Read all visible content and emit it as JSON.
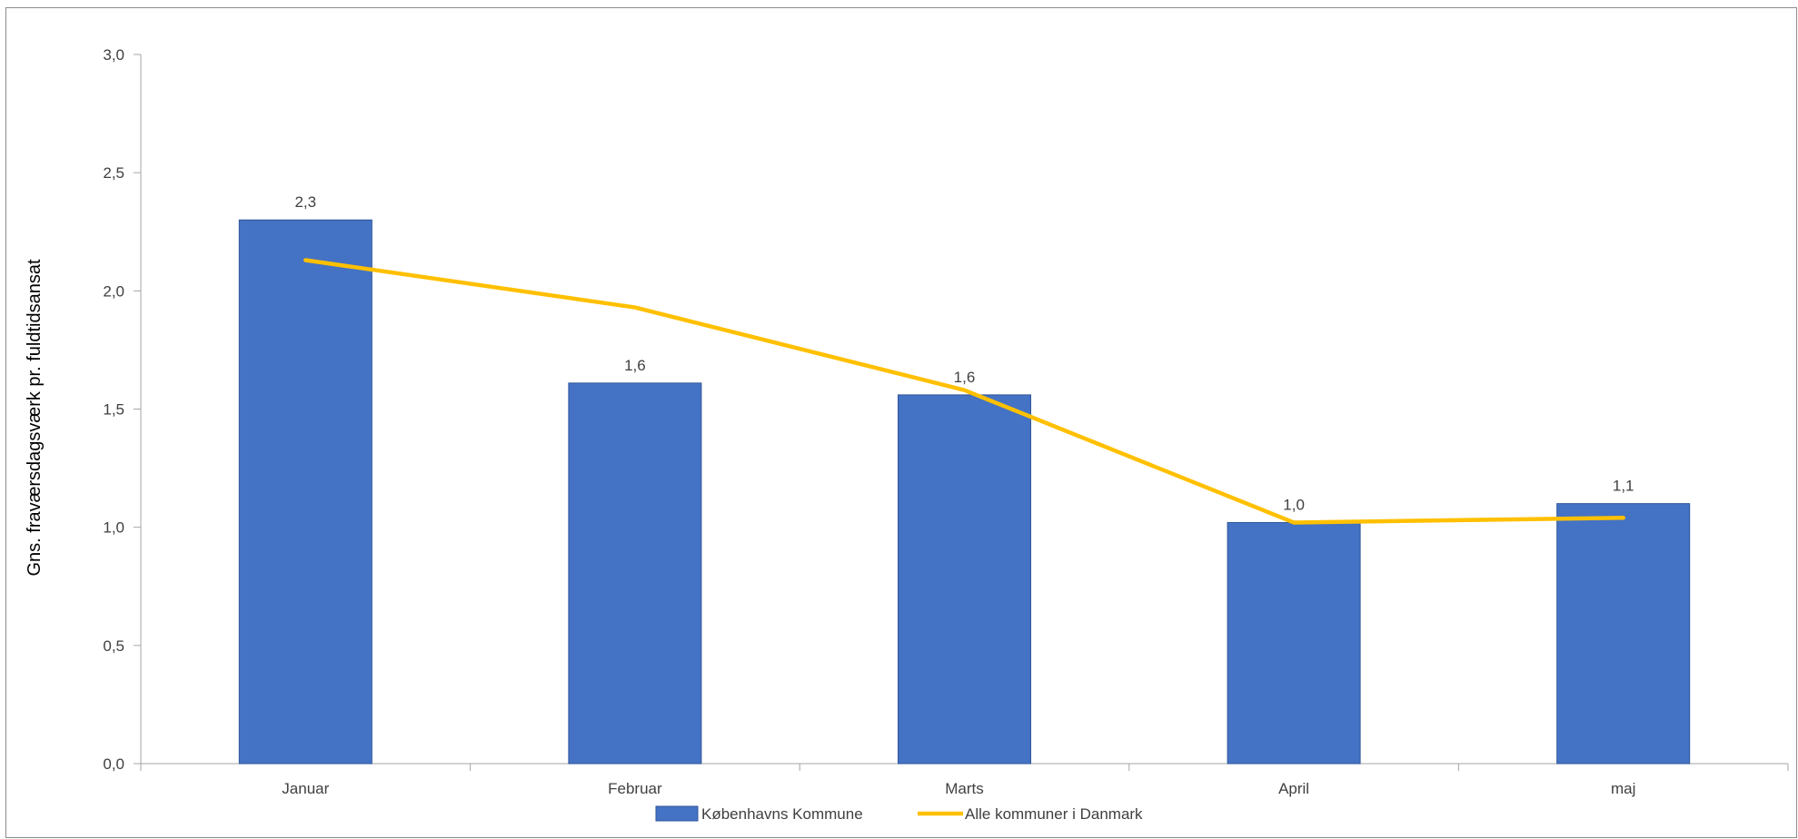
{
  "chart_data": {
    "type": "bar",
    "categories": [
      "Januar",
      "Februar",
      "Marts",
      "April",
      "maj"
    ],
    "series": [
      {
        "name": "Københavns Kommune",
        "kind": "bar",
        "color": "#4472C4",
        "values": [
          2.3,
          1.61,
          1.56,
          1.02,
          1.1
        ],
        "labels": [
          "2,3",
          "1,6",
          "1,6",
          "1,0",
          "1,1"
        ]
      },
      {
        "name": "Alle kommuner i Danmark",
        "kind": "line",
        "color": "#FFC000",
        "values": [
          2.13,
          1.93,
          1.58,
          1.02,
          1.04
        ]
      }
    ],
    "title": "",
    "xlabel": "",
    "ylabel": "Gns. fraværsdagsværk pr. fuldtidsansat",
    "ylim": [
      0,
      3
    ],
    "yticks": [
      "0,0",
      "0,5",
      "1,0",
      "1,5",
      "2,0",
      "2,5",
      "3,0"
    ],
    "grid": false,
    "legend_position": "bottom"
  }
}
